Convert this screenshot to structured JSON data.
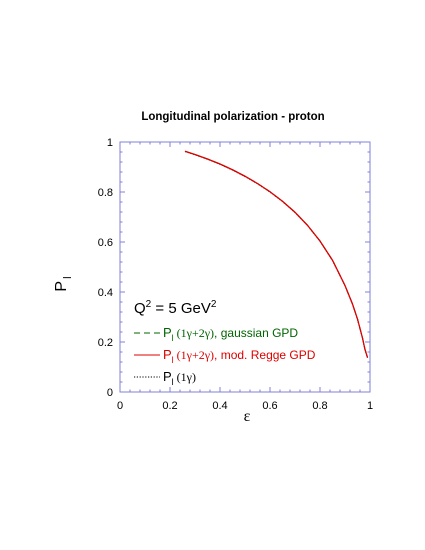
{
  "chart_data": {
    "type": "line",
    "title": "Longitudinal polarization - proton",
    "xlabel": "ε",
    "ylabel": "P",
    "ylabel_sub": "l",
    "xlim": [
      0,
      1
    ],
    "ylim": [
      0,
      1
    ],
    "x_ticks": [
      "0",
      "0.2",
      "0.4",
      "0.6",
      "0.8",
      "1"
    ],
    "y_ticks": [
      "0",
      "0.2",
      "0.4",
      "0.6",
      "0.8",
      "1"
    ],
    "grid": false,
    "annotation": {
      "text": "Q",
      "sup": "2",
      "text2": " = 5 GeV",
      "sup2": "2"
    },
    "legend_position": "lower-left",
    "series": [
      {
        "name": "P_l (1γ+2γ), gaussian GPD",
        "legend": {
          "main": "P",
          "sub": "l",
          "serif": " (1γ+2γ)",
          "rest": ", gaussian GPD"
        },
        "color": "#006400",
        "dash": "dashed",
        "x": [
          0.26,
          0.3,
          0.35,
          0.4,
          0.45,
          0.5,
          0.55,
          0.6,
          0.65,
          0.7,
          0.75,
          0.8,
          0.85,
          0.9,
          0.93,
          0.95,
          0.97,
          0.98,
          0.99
        ],
        "y": [
          0.963,
          0.95,
          0.932,
          0.912,
          0.889,
          0.863,
          0.834,
          0.801,
          0.763,
          0.719,
          0.667,
          0.604,
          0.527,
          0.426,
          0.352,
          0.292,
          0.216,
          0.17,
          0.138
        ]
      },
      {
        "name": "P_l (1γ+2γ), mod. Regge GPD",
        "legend": {
          "main": "P",
          "sub": "l",
          "serif": " (1γ+2γ)",
          "rest": ", mod. Regge GPD"
        },
        "color": "#dd0000",
        "dash": "solid",
        "x": [
          0.26,
          0.3,
          0.35,
          0.4,
          0.45,
          0.5,
          0.55,
          0.6,
          0.65,
          0.7,
          0.75,
          0.8,
          0.85,
          0.9,
          0.93,
          0.95,
          0.97,
          0.98,
          0.99
        ],
        "y": [
          0.963,
          0.95,
          0.932,
          0.912,
          0.889,
          0.863,
          0.834,
          0.801,
          0.763,
          0.719,
          0.667,
          0.604,
          0.527,
          0.426,
          0.352,
          0.292,
          0.216,
          0.17,
          0.138
        ]
      },
      {
        "name": "P_l (1γ)",
        "legend": {
          "main": "P",
          "sub": "l",
          "serif": " (1γ)",
          "rest": ""
        },
        "color": "#000000",
        "dash": "dotted",
        "x": [
          0.26,
          0.3,
          0.35,
          0.4,
          0.45,
          0.5,
          0.55,
          0.6,
          0.65,
          0.7,
          0.75,
          0.8,
          0.85,
          0.9,
          0.93,
          0.95,
          0.97,
          0.98,
          0.99
        ],
        "y": [
          0.962,
          0.949,
          0.931,
          0.911,
          0.888,
          0.862,
          0.833,
          0.8,
          0.762,
          0.718,
          0.666,
          0.603,
          0.526,
          0.425,
          0.351,
          0.291,
          0.215,
          0.169,
          0.137
        ]
      }
    ]
  }
}
